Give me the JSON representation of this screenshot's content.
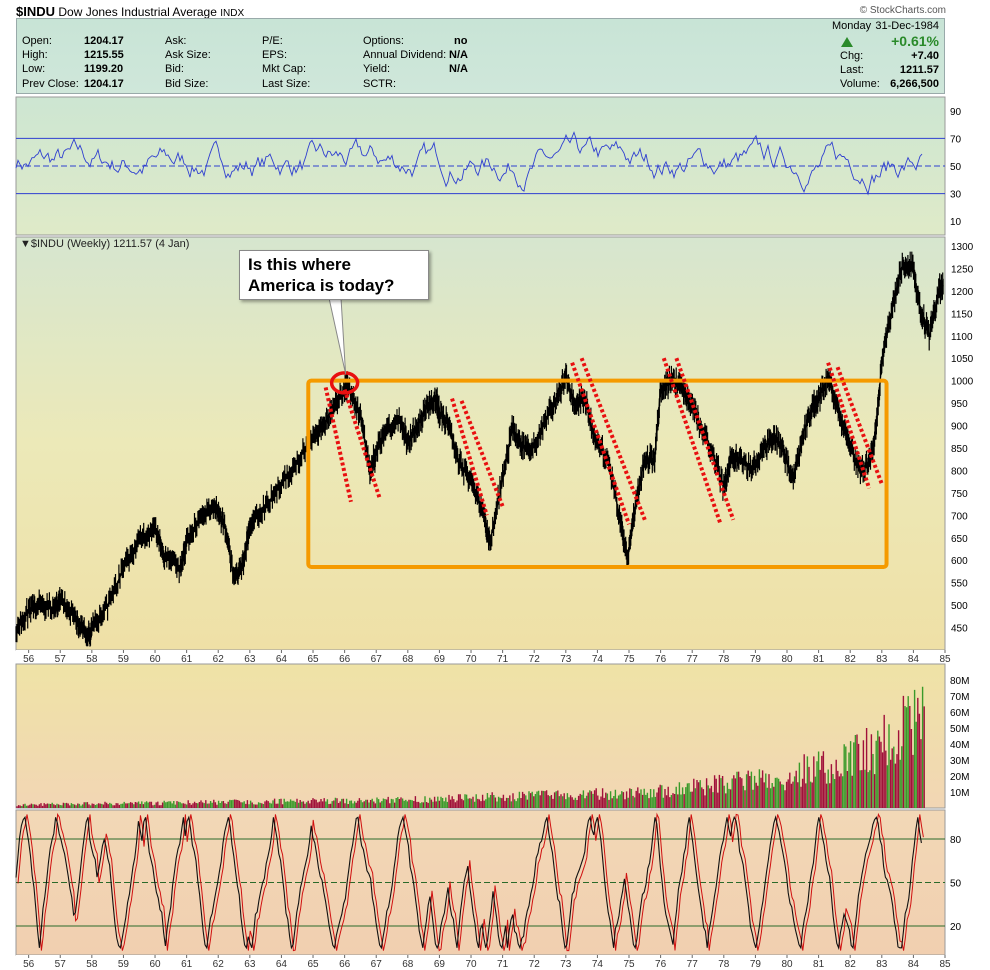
{
  "header": {
    "symbol": "$INDU",
    "name": "Dow Jones Industrial Average",
    "exchange": "INDX",
    "credit": "© StockCharts.com"
  },
  "quote": {
    "left": [
      {
        "label": "Open:",
        "value": "1204.17"
      },
      {
        "label": "High:",
        "value": "1215.55"
      },
      {
        "label": "Low:",
        "value": "1199.20"
      },
      {
        "label": "Prev Close:",
        "value": "1204.17"
      }
    ],
    "mid1": [
      {
        "label": "Ask:"
      },
      {
        "label": "Ask Size:"
      },
      {
        "label": "Bid:"
      },
      {
        "label": "Bid Size:"
      }
    ],
    "mid2": [
      {
        "label": "P/E:"
      },
      {
        "label": "EPS:"
      },
      {
        "label": "Mkt Cap:"
      },
      {
        "label": "Last Size:"
      }
    ],
    "mid3": [
      {
        "label": "Options:",
        "value": "no"
      },
      {
        "label": "Annual Dividend:",
        "value": "N/A"
      },
      {
        "label": "Yield:",
        "value": "N/A"
      },
      {
        "label": "SCTR:",
        "value": ""
      }
    ],
    "date_day": "Monday",
    "date": "31-Dec-1984",
    "pct_change": "+0.61%",
    "chg_label": "Chg:",
    "chg_value": "+7.40",
    "last_label": "Last:",
    "last_value": "1211.57",
    "volume_label": "Volume:",
    "volume_value": "6,266,500",
    "up_color": "#2a8a2a"
  },
  "chart_data": [
    {
      "type": "line",
      "panel": "rsi",
      "ylim": [
        0,
        100
      ],
      "yticks": [
        10,
        30,
        50,
        70,
        90
      ],
      "reference_lines": [
        30,
        50,
        70
      ],
      "line_color": "#2f3fd0"
    },
    {
      "type": "line",
      "panel": "price",
      "legend": "$INDU (Weekly) 1211.57 (4 Jan)",
      "x_ticks": [
        "56",
        "57",
        "58",
        "59",
        "60",
        "61",
        "62",
        "63",
        "64",
        "65",
        "66",
        "67",
        "68",
        "69",
        "70",
        "71",
        "72",
        "73",
        "74",
        "75",
        "76",
        "77",
        "78",
        "79",
        "80",
        "81",
        "82",
        "83",
        "84",
        "85"
      ],
      "xlim": [
        1955.6,
        1985.0
      ],
      "ylim": [
        400,
        1320
      ],
      "yticks": [
        450,
        500,
        550,
        600,
        650,
        700,
        750,
        800,
        850,
        900,
        950,
        1000,
        1050,
        1100,
        1150,
        1200,
        1250,
        1300
      ],
      "x": [
        1955.6,
        1956.0,
        1956.3,
        1956.8,
        1957.0,
        1957.5,
        1957.8,
        1958.0,
        1958.5,
        1959.0,
        1959.5,
        1960.0,
        1960.3,
        1960.8,
        1961.0,
        1961.5,
        1961.9,
        1962.2,
        1962.5,
        1962.8,
        1963.0,
        1963.5,
        1964.0,
        1964.5,
        1965.0,
        1965.3,
        1965.6,
        1966.0,
        1966.1,
        1966.5,
        1966.8,
        1967.0,
        1967.3,
        1967.8,
        1968.0,
        1968.3,
        1968.6,
        1968.9,
        1969.0,
        1969.3,
        1969.6,
        1970.0,
        1970.4,
        1970.6,
        1971.0,
        1971.3,
        1971.6,
        1971.9,
        1972.3,
        1972.7,
        1973.0,
        1973.3,
        1973.6,
        1973.9,
        1974.3,
        1974.7,
        1974.95,
        1975.2,
        1975.5,
        1975.8,
        1976.0,
        1976.3,
        1976.6,
        1976.9,
        1977.2,
        1977.6,
        1978.0,
        1978.2,
        1978.5,
        1978.9,
        1979.3,
        1979.6,
        1979.9,
        1980.2,
        1980.5,
        1980.8,
        1981.0,
        1981.3,
        1981.6,
        1981.9,
        1982.3,
        1982.6,
        1982.8,
        1983.0,
        1983.3,
        1983.6,
        1983.95,
        1984.2,
        1984.5,
        1984.8,
        1984.95
      ],
      "y": [
        450,
        485,
        500,
        495,
        510,
        470,
        430,
        445,
        500,
        580,
        650,
        670,
        610,
        580,
        640,
        700,
        720,
        680,
        560,
        590,
        680,
        720,
        770,
        820,
        880,
        900,
        930,
        980,
        990,
        920,
        800,
        840,
        890,
        910,
        860,
        900,
        940,
        960,
        930,
        900,
        820,
        780,
        700,
        640,
        780,
        890,
        860,
        840,
        900,
        960,
        1010,
        950,
        960,
        870,
        830,
        700,
        600,
        720,
        830,
        820,
        980,
        1000,
        990,
        960,
        910,
        850,
        760,
        820,
        830,
        800,
        850,
        880,
        840,
        780,
        880,
        940,
        960,
        1010,
        940,
        870,
        800,
        820,
        880,
        1040,
        1150,
        1250,
        1260,
        1160,
        1100,
        1200,
        1212
      ],
      "box": {
        "x0": 1964.85,
        "x1": 1983.15,
        "y0": 585,
        "y1": 1000,
        "color": "#f59a00"
      },
      "trendlines": [
        {
          "x0": 1965.4,
          "y0": 985,
          "x1": 1966.2,
          "y1": 730
        },
        {
          "x0": 1966.0,
          "y0": 980,
          "x1": 1967.1,
          "y1": 740
        },
        {
          "x0": 1969.4,
          "y0": 960,
          "x1": 1970.5,
          "y1": 700
        },
        {
          "x0": 1969.7,
          "y0": 955,
          "x1": 1971.0,
          "y1": 720
        },
        {
          "x0": 1973.2,
          "y0": 1040,
          "x1": 1975.0,
          "y1": 680
        },
        {
          "x0": 1973.5,
          "y0": 1050,
          "x1": 1975.5,
          "y1": 690
        },
        {
          "x0": 1976.1,
          "y0": 1050,
          "x1": 1977.9,
          "y1": 680
        },
        {
          "x0": 1976.5,
          "y0": 1050,
          "x1": 1978.3,
          "y1": 690
        },
        {
          "x0": 1981.3,
          "y0": 1040,
          "x1": 1982.6,
          "y1": 760
        },
        {
          "x0": 1981.6,
          "y0": 1030,
          "x1": 1983.0,
          "y1": 770
        }
      ],
      "circle": {
        "x": 1966.0,
        "y": 995
      },
      "callout": {
        "text_line1": "Is this where",
        "text_line2": "America is today?"
      }
    },
    {
      "type": "bar",
      "panel": "volume",
      "ylim": [
        0,
        90
      ],
      "yticks": [
        10,
        20,
        30,
        40,
        50,
        60,
        70,
        80
      ],
      "tick_suffix": "M",
      "up_color": "#3a9a2a",
      "down_color": "#a0103a"
    },
    {
      "type": "line",
      "panel": "stochastic",
      "ylim": [
        0,
        100
      ],
      "yticks": [
        20,
        50,
        80
      ],
      "reference_lines": [
        20,
        50,
        80
      ],
      "line_color": "#7a0000"
    }
  ]
}
